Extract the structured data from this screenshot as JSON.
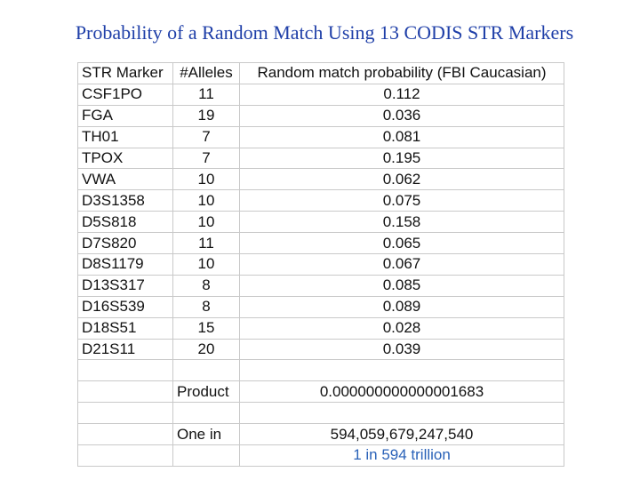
{
  "title": "Probability of a Random Match Using 13 CODIS STR Markers",
  "colors": {
    "title": "#1f3fa8",
    "text": "#111111",
    "highlight": "#2a62b8",
    "grid": "#c9c9c9"
  },
  "table": {
    "headers": [
      "STR Marker",
      "#Alleles",
      "Random match probability (FBI Caucasian)"
    ],
    "rows": [
      {
        "marker": "CSF1PO",
        "alleles": "11",
        "prob": "0.112"
      },
      {
        "marker": "FGA",
        "alleles": "19",
        "prob": "0.036"
      },
      {
        "marker": "TH01",
        "alleles": "7",
        "prob": "0.081"
      },
      {
        "marker": "TPOX",
        "alleles": "7",
        "prob": "0.195"
      },
      {
        "marker": "VWA",
        "alleles": "10",
        "prob": "0.062"
      },
      {
        "marker": "D3S1358",
        "alleles": "10",
        "prob": "0.075"
      },
      {
        "marker": "D5S818",
        "alleles": "10",
        "prob": "0.158"
      },
      {
        "marker": "D7S820",
        "alleles": "11",
        "prob": "0.065"
      },
      {
        "marker": "D8S1179",
        "alleles": "10",
        "prob": "0.067"
      },
      {
        "marker": "D13S317",
        "alleles": "8",
        "prob": "0.085"
      },
      {
        "marker": "D16S539",
        "alleles": "8",
        "prob": "0.089"
      },
      {
        "marker": "D18S51",
        "alleles": "15",
        "prob": "0.028"
      },
      {
        "marker": "D21S11",
        "alleles": "20",
        "prob": "0.039"
      }
    ],
    "product_label": "Product",
    "product_value": "0.000000000000001683",
    "one_in_label": "One in",
    "one_in_value": "594,059,679,247,540",
    "one_in_text": "1 in 594 trillion"
  }
}
